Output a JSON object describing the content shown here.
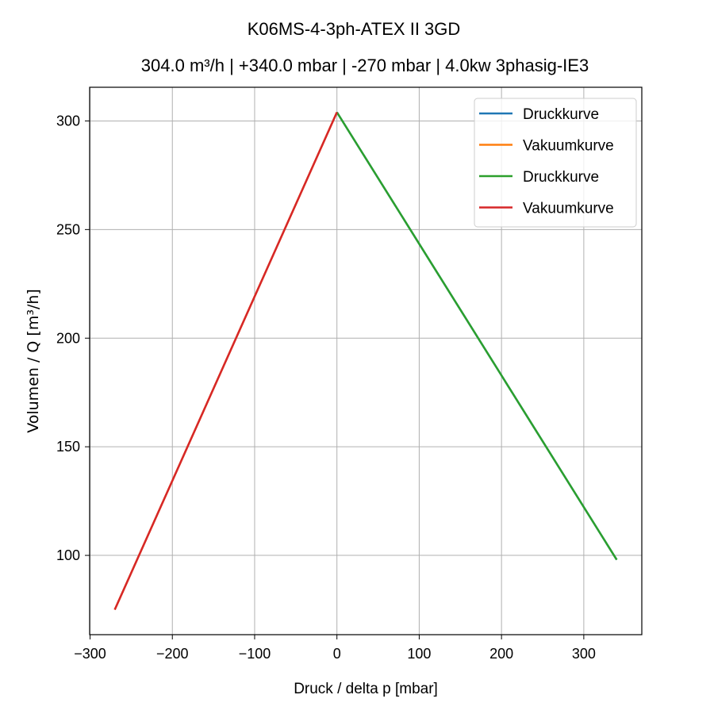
{
  "chart_data": {
    "type": "line",
    "title": "K06MS-4-3ph-ATEX II 3GD",
    "subtitle": "304.0 m³/h | +340.0 mbar | -270 mbar | 4.0kw 3phasig-IE3",
    "xlabel": "Druck / delta p [mbar]",
    "ylabel": "Volumen / Q [m³/h]",
    "xlim": [
      -300.5,
      370.5
    ],
    "ylim": [
      63.5,
      315.5
    ],
    "xticks": [
      -300,
      -200,
      -100,
      0,
      100,
      200,
      300
    ],
    "xtick_labels": [
      "−300",
      "−200",
      "−100",
      "0",
      "100",
      "200",
      "300"
    ],
    "yticks": [
      100,
      150,
      200,
      250,
      300
    ],
    "ytick_labels": [
      "100",
      "150",
      "200",
      "250",
      "300"
    ],
    "grid": true,
    "legend_position": "top-right",
    "series": [
      {
        "name": "Druckkurve",
        "color": "#1f77b4",
        "x": [
          0,
          340
        ],
        "y": [
          304,
          98
        ]
      },
      {
        "name": "Vakuumkurve",
        "color": "#ff7f0e",
        "x": [
          0,
          -270
        ],
        "y": [
          304,
          75
        ]
      },
      {
        "name": "Druckkurve",
        "color": "#2ca02c",
        "x": [
          0,
          340
        ],
        "y": [
          304,
          98
        ]
      },
      {
        "name": "Vakuumkurve",
        "color": "#d62728",
        "x": [
          0,
          -270
        ],
        "y": [
          304,
          75
        ]
      }
    ]
  }
}
